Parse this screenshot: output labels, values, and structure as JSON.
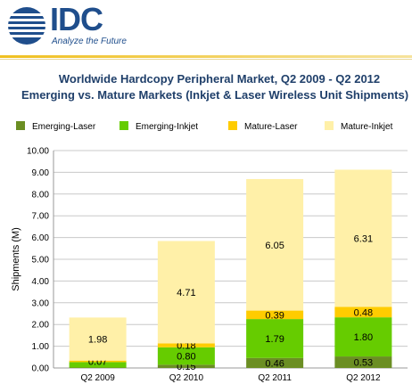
{
  "logo": {
    "text": "IDC",
    "tagline": "Analyze the Future"
  },
  "chart_data": {
    "type": "bar",
    "stacked": true,
    "title": "Worldwide Hardcopy Peripheral Market, Q2 2009 - Q2 2012",
    "subtitle": "Emerging vs. Mature Markets (Inkjet & Laser Wireless Unit Shipments)",
    "xlabel": "",
    "ylabel": "Shipments (M)",
    "ylim": [
      0,
      10
    ],
    "yticks": [
      "0.00",
      "1.00",
      "2.00",
      "3.00",
      "4.00",
      "5.00",
      "6.00",
      "7.00",
      "8.00",
      "9.00",
      "10.00"
    ],
    "categories": [
      "Q2 2009",
      "Q2 2010",
      "Q2 2011",
      "Q2 2012"
    ],
    "legend_position": "top",
    "series": [
      {
        "name": "Emerging-Laser",
        "color": "#6b8e23",
        "values": [
          0.02,
          0.15,
          0.46,
          0.53
        ],
        "labels": [
          "",
          "0.15",
          "0.46",
          "0.53"
        ]
      },
      {
        "name": "Emerging-Inkjet",
        "color": "#66cc00",
        "values": [
          0.25,
          0.8,
          1.79,
          1.8
        ],
        "labels": [
          "",
          "0.80",
          "1.79",
          "1.80"
        ]
      },
      {
        "name": "Mature-Laser",
        "color": "#ffcc00",
        "values": [
          0.07,
          0.18,
          0.39,
          0.48
        ],
        "labels": [
          "0.07",
          "0.18",
          "0.39",
          "0.48"
        ]
      },
      {
        "name": "Mature-Inkjet",
        "color": "#fff0a8",
        "values": [
          1.98,
          4.71,
          6.05,
          6.31
        ],
        "labels": [
          "1.98",
          "4.71",
          "6.05",
          "6.31"
        ]
      }
    ]
  }
}
